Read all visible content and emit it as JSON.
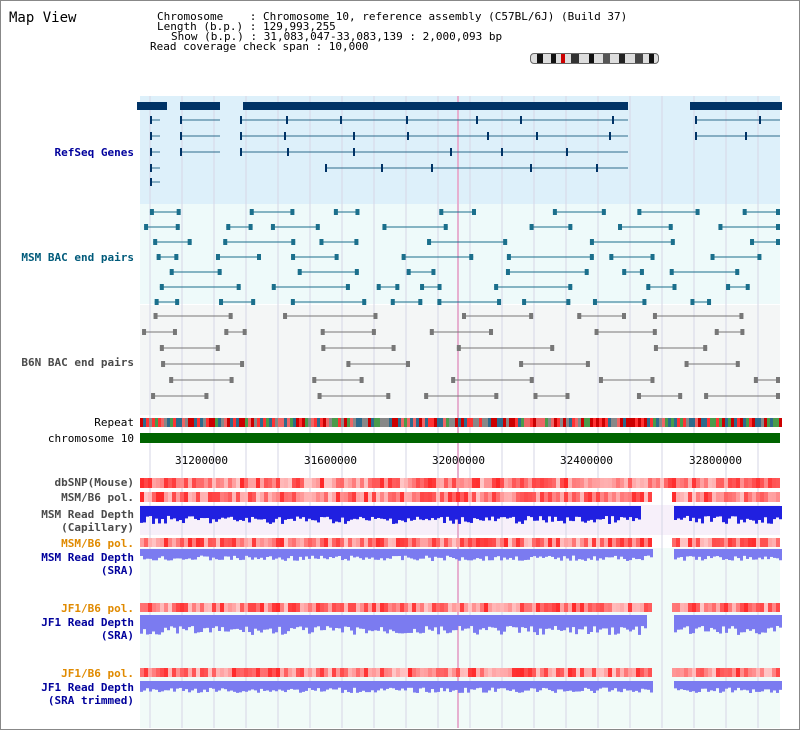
{
  "title": "Map View",
  "info": {
    "chromosome_line": "Chromosome    : Chromosome 10, reference assembly (C57BL/6J) (Build 37)",
    "length_line": "Length (b.p.) : 129,993,255",
    "show_line": "Show (b.p.) : 31,083,047-33,083,139 : 2,000,093 bp",
    "coverage_line": "Read coverage check span : 10,000"
  },
  "tracks": {
    "refseq": "RefSeq Genes",
    "msm_bac": "MSM BAC end pairs",
    "b6n_bac": "B6N BAC end pairs",
    "repeat": "Repeat",
    "chromosome": "chromosome 10",
    "dbsnp": "dbSNP(Mouse)",
    "msm_b6_pol_1": "MSM/B6 pol.",
    "msm_depth_cap_1": "MSM Read Depth",
    "msm_depth_cap_2": "(Capillary)",
    "msm_b6_pol_2": "MSM/B6 pol.",
    "msm_depth_sra_1": "MSM Read Depth",
    "msm_depth_sra_2": "(SRA)",
    "jf1_b6_pol_1": "JF1/B6 pol.",
    "jf1_depth_sra_1": "JF1 Read Depth",
    "jf1_depth_sra_2": "(SRA)",
    "jf1_b6_pol_2": "JF1/B6 pol.",
    "jf1_depth_trim_1": "JF1 Read Depth",
    "jf1_depth_trim_2": "(SRA trimmed)"
  },
  "axis_ticks": [
    "31200000",
    "31600000",
    "32000000",
    "32400000",
    "32800000"
  ],
  "colors": {
    "refseq_bg": "#ddf0fa",
    "bac_bg": "#eefafa",
    "depth_bg": "#f3f3fb",
    "chromosome_band": "#006400",
    "gene_dark": "#003366",
    "msm_feature": "#1b6f8c",
    "b6n_feature": "#777777",
    "pol_red": "#ff3030",
    "depth_blue": "#2020e0",
    "depth_light": "#7b7bf0"
  }
}
